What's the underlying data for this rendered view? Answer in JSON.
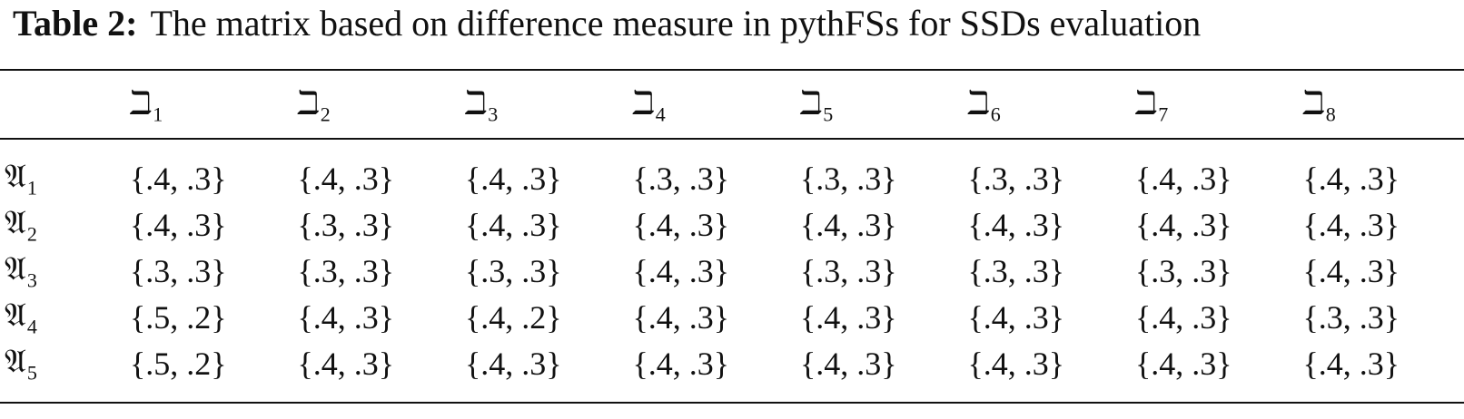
{
  "caption": {
    "label": "Table 2:",
    "text": "The matrix based on difference measure in pythFSs for SSDs evaluation"
  },
  "header": {
    "columns": [
      {
        "symbol": "ℶ",
        "subscript": "1"
      },
      {
        "symbol": "ℶ",
        "subscript": "2"
      },
      {
        "symbol": "ℶ",
        "subscript": "3"
      },
      {
        "symbol": "ℶ",
        "subscript": "4"
      },
      {
        "symbol": "ℶ",
        "subscript": "5"
      },
      {
        "symbol": "ℶ",
        "subscript": "6"
      },
      {
        "symbol": "ℶ",
        "subscript": "7"
      },
      {
        "symbol": "ℶ",
        "subscript": "8"
      }
    ]
  },
  "rows": [
    {
      "label": {
        "symbol": "𝔄",
        "subscript": "1"
      },
      "cells": [
        "{.4, .3}",
        "{.4, .3}",
        "{.4, .3}",
        "{.3, .3}",
        "{.3, .3}",
        "{.3, .3}",
        "{.4, .3}",
        "{.4, .3}"
      ]
    },
    {
      "label": {
        "symbol": "𝔄",
        "subscript": "2"
      },
      "cells": [
        "{.4, .3}",
        "{.3, .3}",
        "{.4, .3}",
        "{.4, .3}",
        "{.4, .3}",
        "{.4, .3}",
        "{.4, .3}",
        "{.4, .3}"
      ]
    },
    {
      "label": {
        "symbol": "𝔄",
        "subscript": "3"
      },
      "cells": [
        "{.3, .3}",
        "{.3, .3}",
        "{.3, .3}",
        "{.4, .3}",
        "{.3, .3}",
        "{.3, .3}",
        "{.3, .3}",
        "{.4, .3}"
      ]
    },
    {
      "label": {
        "symbol": "𝔄",
        "subscript": "4"
      },
      "cells": [
        "{.5, .2}",
        "{.4, .3}",
        "{.4, .2}",
        "{.4, .3}",
        "{.4, .3}",
        "{.4, .3}",
        "{.4, .3}",
        "{.3, .3}"
      ]
    },
    {
      "label": {
        "symbol": "𝔄",
        "subscript": "5"
      },
      "cells": [
        "{.5, .2}",
        "{.4, .3}",
        "{.4, .3}",
        "{.4, .3}",
        "{.4, .3}",
        "{.4, .3}",
        "{.4, .3}",
        "{.4, .3}"
      ]
    }
  ]
}
